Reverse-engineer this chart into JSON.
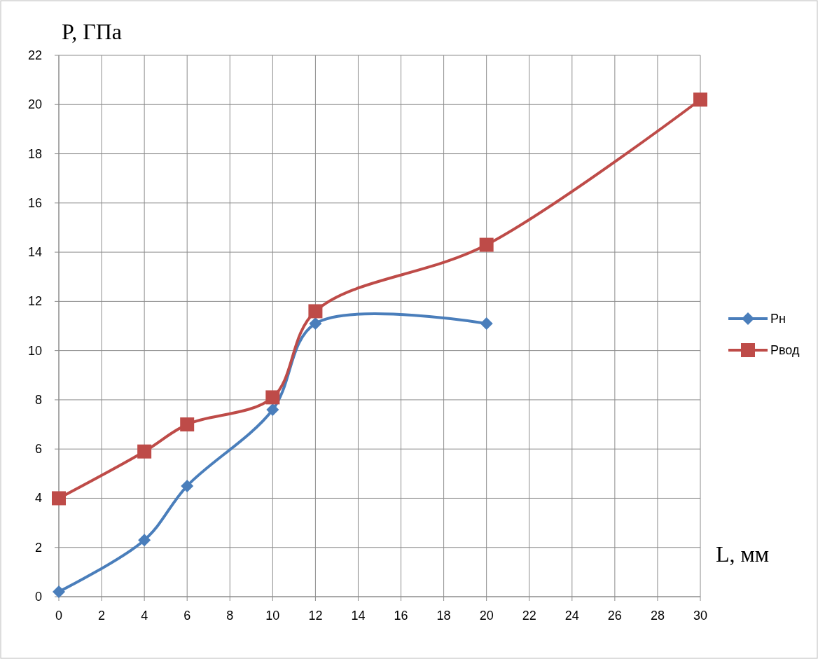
{
  "chart_data": {
    "type": "line",
    "xlabel": "L, мм",
    "ylabel": "P, ГПа",
    "xlim": [
      0,
      30
    ],
    "ylim": [
      0,
      22
    ],
    "xticks": [
      0,
      2,
      4,
      6,
      8,
      10,
      12,
      14,
      16,
      18,
      20,
      22,
      24,
      26,
      28,
      30
    ],
    "yticks": [
      0,
      2,
      4,
      6,
      8,
      10,
      12,
      14,
      16,
      18,
      20,
      22
    ],
    "grid": true,
    "legend": "right",
    "series": [
      {
        "name": "Рн",
        "color": "#4a7ebb",
        "marker": "diamond",
        "x": [
          0,
          4,
          6,
          10,
          12,
          20
        ],
        "values": [
          0.2,
          2.3,
          4.5,
          7.6,
          11.1,
          11.1
        ]
      },
      {
        "name": "Рвод",
        "color": "#be4b48",
        "marker": "square",
        "x": [
          0,
          4,
          6,
          10,
          12,
          20,
          30
        ],
        "values": [
          4,
          5.9,
          7,
          8.1,
          11.6,
          14.3,
          20.2
        ]
      }
    ]
  }
}
